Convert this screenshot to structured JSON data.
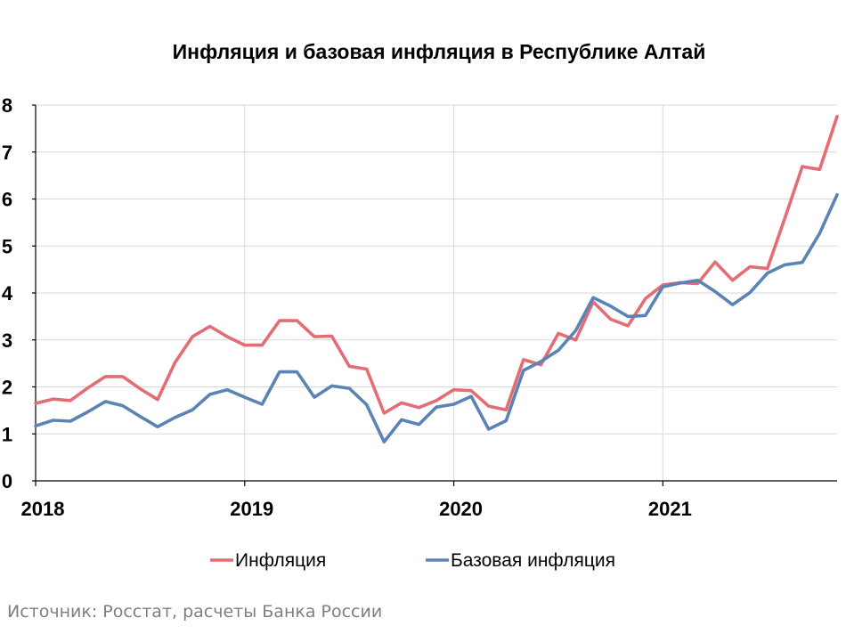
{
  "chart_data": {
    "type": "line",
    "title": "Инфляция и базовая инфляция в Республике Алтай",
    "xlabel": "",
    "ylabel": "",
    "ylim": [
      0,
      8
    ],
    "yticks": [
      "0",
      "1",
      "2",
      "3",
      "4",
      "5",
      "6",
      "7",
      "8"
    ],
    "xticks": [
      {
        "label": "2018",
        "x": 0
      },
      {
        "label": "2019",
        "x": 12
      },
      {
        "label": "2020",
        "x": 24
      },
      {
        "label": "2021",
        "x": 36
      }
    ],
    "x_unit": "months since Jan 2018",
    "x": [
      0,
      1,
      2,
      3,
      4,
      5,
      6,
      7,
      8,
      9,
      10,
      11,
      12,
      13,
      14,
      15,
      16,
      17,
      18,
      19,
      20,
      21,
      22,
      23,
      24,
      25,
      26,
      27,
      28,
      29,
      30,
      31,
      32,
      33,
      34,
      35,
      36,
      37,
      38,
      39,
      40,
      41,
      42,
      43,
      44,
      45,
      46
    ],
    "grid": "vertical lines at each year",
    "legend_position": "bottom",
    "series": [
      {
        "name": "Инфляция",
        "color": "#e46c74",
        "values": [
          1.65,
          1.74,
          1.71,
          1.98,
          2.22,
          2.22,
          1.96,
          1.73,
          2.52,
          3.07,
          3.29,
          3.07,
          2.89,
          2.89,
          3.41,
          3.41,
          3.07,
          3.08,
          2.44,
          2.38,
          1.44,
          1.66,
          1.56,
          1.71,
          1.94,
          1.92,
          1.59,
          1.51,
          2.58,
          2.47,
          3.14,
          3.0,
          3.81,
          3.44,
          3.3,
          3.88,
          4.17,
          4.22,
          4.2,
          4.66,
          4.27,
          4.56,
          4.52,
          5.59,
          6.69,
          6.63,
          7.76
        ]
      },
      {
        "name": "Базовая инфляция",
        "color": "#5b83b6",
        "values": [
          1.17,
          1.29,
          1.27,
          1.47,
          1.69,
          1.6,
          1.37,
          1.15,
          1.35,
          1.51,
          1.84,
          1.94,
          1.78,
          1.63,
          2.32,
          2.32,
          1.78,
          2.02,
          1.97,
          1.62,
          0.83,
          1.3,
          1.2,
          1.57,
          1.63,
          1.8,
          1.1,
          1.28,
          2.35,
          2.54,
          2.78,
          3.2,
          3.9,
          3.72,
          3.5,
          3.52,
          4.13,
          4.21,
          4.27,
          4.03,
          3.75,
          4.01,
          4.42,
          4.6,
          4.65,
          5.27,
          6.09
        ]
      }
    ]
  },
  "source": "Источник: Росстат, расчеты Банка России"
}
